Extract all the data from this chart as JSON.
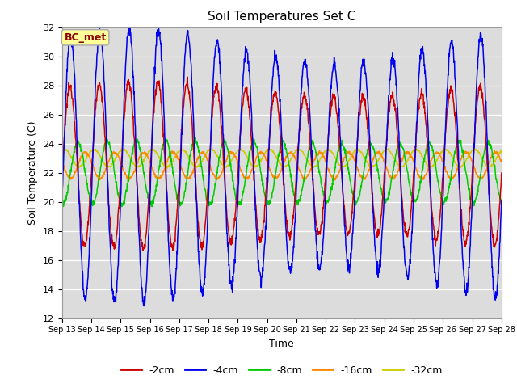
{
  "title": "Soil Temperatures Set C",
  "xlabel": "Time",
  "ylabel": "Soil Temperature (C)",
  "ylim": [
    12,
    32
  ],
  "xlim": [
    0,
    15
  ],
  "background_color": "#dcdcdc",
  "annotation_text": "BC_met",
  "annotation_color": "#8B0000",
  "annotation_bg": "#ffff99",
  "colors": {
    "-2cm": "#cc0000",
    "-4cm": "#0000ee",
    "-8cm": "#00cc00",
    "-16cm": "#ff8800",
    "-32cm": "#cccc00"
  },
  "xtick_labels": [
    "Sep 13",
    "Sep 14",
    "Sep 15",
    "Sep 16",
    "Sep 17",
    "Sep 18",
    "Sep 19",
    "Sep 20",
    "Sep 21",
    "Sep 22",
    "Sep 23",
    "Sep 24",
    "Sep 25",
    "Sep 26",
    "Sep 27",
    "Sep 28"
  ],
  "xtick_positions": [
    0,
    1,
    2,
    3,
    4,
    5,
    6,
    7,
    8,
    9,
    10,
    11,
    12,
    13,
    14,
    15
  ],
  "ytick_labels": [
    "12",
    "14",
    "16",
    "18",
    "20",
    "22",
    "24",
    "26",
    "28",
    "30",
    "32"
  ],
  "ytick_positions": [
    12,
    14,
    16,
    18,
    20,
    22,
    24,
    26,
    28,
    30,
    32
  ]
}
